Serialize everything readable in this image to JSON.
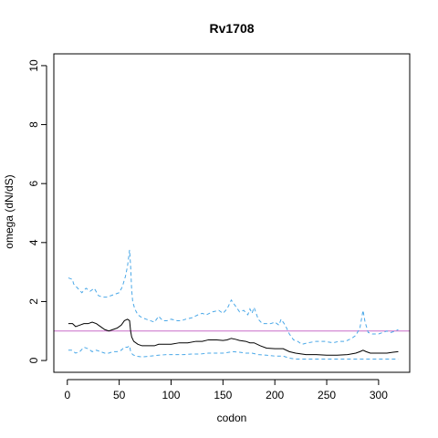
{
  "chart_data": {
    "type": "line",
    "title": "Rv1708",
    "xlabel": "codon",
    "ylabel": "omega (dN/dS)",
    "xlim": [
      -13,
      330
    ],
    "ylim": [
      -0.4,
      10.4
    ],
    "x_ticks": [
      0,
      50,
      100,
      150,
      200,
      250,
      300
    ],
    "y_ticks": [
      0,
      2,
      4,
      6,
      8,
      10
    ],
    "grid": false,
    "legend": "none",
    "reference_line": {
      "y": 1,
      "color": "#c86bc8"
    },
    "series": [
      {
        "role": "upper",
        "color": "#4aa8e8",
        "style": "dashed",
        "points": [
          [
            1,
            2.8
          ],
          [
            5,
            2.75
          ],
          [
            6,
            2.6
          ],
          [
            10,
            2.45
          ],
          [
            14,
            2.3
          ],
          [
            18,
            2.45
          ],
          [
            22,
            2.35
          ],
          [
            26,
            2.45
          ],
          [
            30,
            2.2
          ],
          [
            34,
            2.15
          ],
          [
            38,
            2.15
          ],
          [
            42,
            2.2
          ],
          [
            46,
            2.25
          ],
          [
            50,
            2.3
          ],
          [
            53,
            2.5
          ],
          [
            56,
            2.85
          ],
          [
            58,
            3.2
          ],
          [
            60,
            3.75
          ],
          [
            61,
            3.2
          ],
          [
            62,
            2.4
          ],
          [
            63,
            2.0
          ],
          [
            65,
            1.75
          ],
          [
            68,
            1.55
          ],
          [
            72,
            1.45
          ],
          [
            76,
            1.4
          ],
          [
            80,
            1.35
          ],
          [
            84,
            1.3
          ],
          [
            88,
            1.5
          ],
          [
            92,
            1.35
          ],
          [
            96,
            1.35
          ],
          [
            100,
            1.4
          ],
          [
            106,
            1.35
          ],
          [
            110,
            1.35
          ],
          [
            114,
            1.4
          ],
          [
            120,
            1.45
          ],
          [
            126,
            1.55
          ],
          [
            130,
            1.6
          ],
          [
            134,
            1.55
          ],
          [
            140,
            1.65
          ],
          [
            146,
            1.7
          ],
          [
            150,
            1.6
          ],
          [
            154,
            1.75
          ],
          [
            158,
            2.05
          ],
          [
            162,
            1.85
          ],
          [
            166,
            1.65
          ],
          [
            170,
            1.7
          ],
          [
            174,
            1.55
          ],
          [
            176,
            1.75
          ],
          [
            178,
            1.6
          ],
          [
            180,
            1.8
          ],
          [
            184,
            1.4
          ],
          [
            188,
            1.25
          ],
          [
            192,
            1.25
          ],
          [
            196,
            1.25
          ],
          [
            200,
            1.3
          ],
          [
            204,
            1.2
          ],
          [
            206,
            1.4
          ],
          [
            210,
            1.2
          ],
          [
            214,
            0.9
          ],
          [
            218,
            0.7
          ],
          [
            222,
            0.65
          ],
          [
            226,
            0.55
          ],
          [
            232,
            0.6
          ],
          [
            240,
            0.65
          ],
          [
            248,
            0.65
          ],
          [
            256,
            0.6
          ],
          [
            262,
            0.65
          ],
          [
            268,
            0.65
          ],
          [
            274,
            0.75
          ],
          [
            278,
            0.85
          ],
          [
            282,
            1.1
          ],
          [
            285,
            1.7
          ],
          [
            287,
            1.3
          ],
          [
            290,
            0.95
          ],
          [
            294,
            0.9
          ],
          [
            300,
            0.9
          ],
          [
            304,
            0.95
          ],
          [
            308,
            1.0
          ],
          [
            312,
            0.95
          ],
          [
            316,
            1.0
          ],
          [
            319,
            1.05
          ]
        ]
      },
      {
        "role": "estimate",
        "color": "#000000",
        "style": "solid",
        "points": [
          [
            1,
            1.25
          ],
          [
            5,
            1.25
          ],
          [
            8,
            1.15
          ],
          [
            12,
            1.2
          ],
          [
            16,
            1.25
          ],
          [
            20,
            1.25
          ],
          [
            24,
            1.3
          ],
          [
            28,
            1.25
          ],
          [
            32,
            1.15
          ],
          [
            36,
            1.05
          ],
          [
            40,
            1.0
          ],
          [
            44,
            1.05
          ],
          [
            48,
            1.1
          ],
          [
            52,
            1.2
          ],
          [
            55,
            1.35
          ],
          [
            58,
            1.4
          ],
          [
            60,
            1.35
          ],
          [
            61,
            1.0
          ],
          [
            62,
            0.8
          ],
          [
            64,
            0.65
          ],
          [
            68,
            0.55
          ],
          [
            72,
            0.5
          ],
          [
            78,
            0.5
          ],
          [
            84,
            0.5
          ],
          [
            88,
            0.55
          ],
          [
            92,
            0.55
          ],
          [
            100,
            0.55
          ],
          [
            108,
            0.6
          ],
          [
            116,
            0.6
          ],
          [
            124,
            0.65
          ],
          [
            130,
            0.65
          ],
          [
            136,
            0.7
          ],
          [
            144,
            0.7
          ],
          [
            150,
            0.68
          ],
          [
            154,
            0.7
          ],
          [
            158,
            0.75
          ],
          [
            162,
            0.72
          ],
          [
            166,
            0.68
          ],
          [
            172,
            0.65
          ],
          [
            176,
            0.6
          ],
          [
            180,
            0.6
          ],
          [
            186,
            0.5
          ],
          [
            192,
            0.42
          ],
          [
            200,
            0.4
          ],
          [
            208,
            0.4
          ],
          [
            214,
            0.3
          ],
          [
            220,
            0.25
          ],
          [
            230,
            0.2
          ],
          [
            240,
            0.2
          ],
          [
            250,
            0.18
          ],
          [
            260,
            0.18
          ],
          [
            270,
            0.2
          ],
          [
            278,
            0.25
          ],
          [
            282,
            0.3
          ],
          [
            285,
            0.35
          ],
          [
            288,
            0.3
          ],
          [
            292,
            0.25
          ],
          [
            300,
            0.25
          ],
          [
            308,
            0.25
          ],
          [
            314,
            0.28
          ],
          [
            319,
            0.3
          ]
        ]
      },
      {
        "role": "lower",
        "color": "#4aa8e8",
        "style": "dashed",
        "points": [
          [
            1,
            0.35
          ],
          [
            4,
            0.35
          ],
          [
            8,
            0.25
          ],
          [
            12,
            0.3
          ],
          [
            16,
            0.45
          ],
          [
            20,
            0.4
          ],
          [
            24,
            0.3
          ],
          [
            28,
            0.35
          ],
          [
            32,
            0.3
          ],
          [
            36,
            0.25
          ],
          [
            40,
            0.25
          ],
          [
            44,
            0.3
          ],
          [
            48,
            0.3
          ],
          [
            52,
            0.35
          ],
          [
            55,
            0.45
          ],
          [
            58,
            0.45
          ],
          [
            60,
            0.5
          ],
          [
            61,
            0.3
          ],
          [
            63,
            0.2
          ],
          [
            66,
            0.15
          ],
          [
            72,
            0.12
          ],
          [
            80,
            0.15
          ],
          [
            88,
            0.18
          ],
          [
            96,
            0.2
          ],
          [
            104,
            0.2
          ],
          [
            112,
            0.2
          ],
          [
            120,
            0.22
          ],
          [
            128,
            0.22
          ],
          [
            136,
            0.25
          ],
          [
            144,
            0.25
          ],
          [
            150,
            0.25
          ],
          [
            156,
            0.28
          ],
          [
            160,
            0.3
          ],
          [
            166,
            0.28
          ],
          [
            172,
            0.25
          ],
          [
            178,
            0.25
          ],
          [
            184,
            0.2
          ],
          [
            192,
            0.18
          ],
          [
            200,
            0.15
          ],
          [
            208,
            0.15
          ],
          [
            214,
            0.08
          ],
          [
            220,
            0.05
          ],
          [
            232,
            0.05
          ],
          [
            244,
            0.05
          ],
          [
            256,
            0.05
          ],
          [
            268,
            0.05
          ],
          [
            278,
            0.05
          ],
          [
            285,
            0.05
          ],
          [
            292,
            0.05
          ],
          [
            304,
            0.05
          ],
          [
            319,
            0.05
          ]
        ]
      }
    ]
  }
}
